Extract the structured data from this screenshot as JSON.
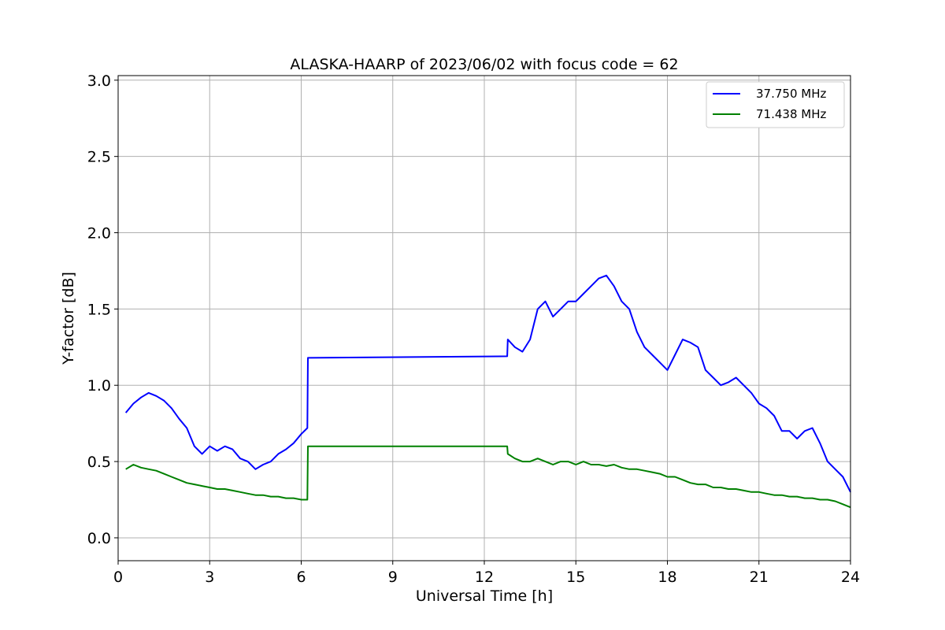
{
  "chart_data": {
    "type": "line",
    "title": "ALASKA-HAARP of 2023/06/02 with focus code = 62",
    "xlabel": "Universal Time [h]",
    "ylabel": "Y-factor [dB]",
    "xlim": [
      0,
      24
    ],
    "ylim": [
      -0.15,
      3.03
    ],
    "xticks": [
      "0",
      "3",
      "6",
      "9",
      "12",
      "15",
      "18",
      "21",
      "24"
    ],
    "yticks": [
      "0.0",
      "0.5",
      "1.0",
      "1.5",
      "2.0",
      "2.5",
      "3.0"
    ],
    "grid": true,
    "legend_position": "top-right",
    "series": [
      {
        "name": "37.750 MHz",
        "color": "#0000ff",
        "x": [
          0.25,
          0.5,
          0.75,
          1.0,
          1.25,
          1.5,
          1.75,
          2.0,
          2.25,
          2.5,
          2.75,
          3.0,
          3.25,
          3.5,
          3.75,
          4.0,
          4.25,
          4.5,
          4.75,
          5.0,
          5.25,
          5.5,
          5.75,
          6.0,
          6.2,
          6.22,
          12.75,
          12.77,
          13.0,
          13.25,
          13.5,
          13.75,
          14.0,
          14.25,
          14.5,
          14.75,
          15.0,
          15.25,
          15.5,
          15.75,
          16.0,
          16.25,
          16.5,
          16.75,
          17.0,
          17.25,
          17.5,
          17.75,
          18.0,
          18.25,
          18.5,
          18.75,
          19.0,
          19.25,
          19.5,
          19.75,
          20.0,
          20.25,
          20.5,
          20.75,
          21.0,
          21.25,
          21.5,
          21.75,
          22.0,
          22.25,
          22.5,
          22.75,
          23.0,
          23.25,
          23.5,
          23.75,
          24.0
        ],
        "values": [
          0.82,
          0.88,
          0.92,
          0.95,
          0.93,
          0.9,
          0.85,
          0.78,
          0.72,
          0.6,
          0.55,
          0.6,
          0.57,
          0.6,
          0.58,
          0.52,
          0.5,
          0.45,
          0.48,
          0.5,
          0.55,
          0.58,
          0.62,
          0.68,
          0.72,
          1.18,
          1.19,
          1.3,
          1.25,
          1.22,
          1.3,
          1.5,
          1.55,
          1.45,
          1.5,
          1.55,
          1.55,
          1.6,
          1.65,
          1.7,
          1.72,
          1.65,
          1.55,
          1.5,
          1.35,
          1.25,
          1.2,
          1.15,
          1.1,
          1.2,
          1.3,
          1.28,
          1.25,
          1.1,
          1.05,
          1.0,
          1.02,
          1.05,
          1.0,
          0.95,
          0.88,
          0.85,
          0.8,
          0.7,
          0.7,
          0.65,
          0.7,
          0.72,
          0.62,
          0.5,
          0.45,
          0.4,
          0.3
        ]
      },
      {
        "name": "71.438 MHz",
        "color": "#008000",
        "x": [
          0.25,
          0.5,
          0.75,
          1.0,
          1.25,
          1.5,
          1.75,
          2.0,
          2.25,
          2.5,
          2.75,
          3.0,
          3.25,
          3.5,
          3.75,
          4.0,
          4.25,
          4.5,
          4.75,
          5.0,
          5.25,
          5.5,
          5.75,
          6.0,
          6.2,
          6.22,
          12.75,
          12.77,
          13.0,
          13.25,
          13.5,
          13.75,
          14.0,
          14.25,
          14.5,
          14.75,
          15.0,
          15.25,
          15.5,
          15.75,
          16.0,
          16.25,
          16.5,
          16.75,
          17.0,
          17.25,
          17.5,
          17.75,
          18.0,
          18.25,
          18.5,
          18.75,
          19.0,
          19.25,
          19.5,
          19.75,
          20.0,
          20.25,
          20.5,
          20.75,
          21.0,
          21.25,
          21.5,
          21.75,
          22.0,
          22.25,
          22.5,
          22.75,
          23.0,
          23.25,
          23.5,
          23.75,
          24.0
        ],
        "values": [
          0.45,
          0.48,
          0.46,
          0.45,
          0.44,
          0.42,
          0.4,
          0.38,
          0.36,
          0.35,
          0.34,
          0.33,
          0.32,
          0.32,
          0.31,
          0.3,
          0.29,
          0.28,
          0.28,
          0.27,
          0.27,
          0.26,
          0.26,
          0.25,
          0.25,
          0.6,
          0.6,
          0.55,
          0.52,
          0.5,
          0.5,
          0.52,
          0.5,
          0.48,
          0.5,
          0.5,
          0.48,
          0.5,
          0.48,
          0.48,
          0.47,
          0.48,
          0.46,
          0.45,
          0.45,
          0.44,
          0.43,
          0.42,
          0.4,
          0.4,
          0.38,
          0.36,
          0.35,
          0.35,
          0.33,
          0.33,
          0.32,
          0.32,
          0.31,
          0.3,
          0.3,
          0.29,
          0.28,
          0.28,
          0.27,
          0.27,
          0.26,
          0.26,
          0.25,
          0.25,
          0.24,
          0.22,
          0.2
        ]
      }
    ]
  }
}
